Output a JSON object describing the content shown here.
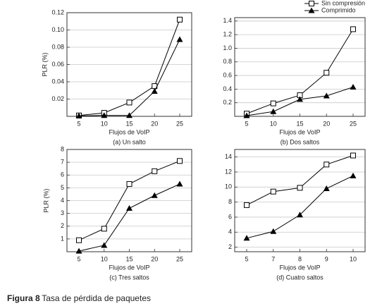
{
  "chart_data": [
    {
      "type": "line",
      "title": "(a) Un salto",
      "x_label": "Flujos de VoIP",
      "y_label": "PLR (%)",
      "categories": [
        5,
        10,
        15,
        20,
        25
      ],
      "ylim": [
        0,
        0.12
      ],
      "yticks": [
        0.02,
        0.04,
        0.06,
        0.08,
        {
          "value": 0.1,
          "label": "0.10"
        },
        0.12
      ],
      "grid": true,
      "series": [
        {
          "color": "#000000",
          "marker": "square-open",
          "values": [
            0.001,
            0.004,
            0.016,
            0.035,
            0.112
          ]
        },
        {
          "color": "#000000",
          "marker": "triangle-filled",
          "values": [
            0.0005,
            0.001,
            0.001,
            0.029,
            0.089
          ]
        }
      ]
    },
    {
      "type": "line",
      "title": "(b) Dos saltos",
      "x_label": "Flujos de VoIP",
      "categories": [
        5,
        10,
        15,
        20,
        25
      ],
      "ylim": [
        0,
        1.45
      ],
      "yticks": [
        0.2,
        0.4,
        0.6,
        0.8,
        {
          "value": 1.0,
          "label": "1.0"
        },
        1.2,
        1.4
      ],
      "grid": true,
      "series": [
        {
          "name": "Sin compresión",
          "color": "#000000",
          "marker": "square-open",
          "values": [
            0.04,
            0.19,
            0.31,
            0.64,
            1.28
          ]
        },
        {
          "name": "Comprimido",
          "color": "#000000",
          "marker": "triangle-filled",
          "values": [
            0.01,
            0.07,
            0.25,
            0.3,
            0.43
          ]
        }
      ]
    },
    {
      "type": "line",
      "title": "(c) Tres saltos",
      "x_label": "Flujos de VoIP",
      "y_label": "PLR (%)",
      "categories": [
        5,
        10,
        15,
        20,
        25
      ],
      "ylim": [
        0,
        8
      ],
      "yticks": [
        1,
        2,
        3,
        4,
        5,
        6,
        7,
        8
      ],
      "grid": true,
      "series": [
        {
          "color": "#000000",
          "marker": "square-open",
          "values": [
            0.9,
            1.8,
            5.3,
            6.3,
            7.1
          ]
        },
        {
          "color": "#000000",
          "marker": "triangle-filled",
          "values": [
            0.05,
            0.5,
            3.4,
            4.4,
            5.3
          ]
        }
      ]
    },
    {
      "type": "line",
      "title": "(d) Cuatro saltos",
      "x_label": "Flujos de VoIP",
      "categories": [
        5,
        7,
        8,
        9,
        10
      ],
      "ylim": [
        1.4,
        15
      ],
      "yticks": [
        2,
        4,
        6,
        8,
        10,
        12,
        14
      ],
      "grid": true,
      "series": [
        {
          "color": "#000000",
          "marker": "square-open",
          "values": [
            7.6,
            9.4,
            9.9,
            13.0,
            14.2
          ]
        },
        {
          "color": "#000000",
          "marker": "triangle-filled",
          "values": [
            3.2,
            4.1,
            6.3,
            9.8,
            11.5
          ]
        }
      ]
    }
  ],
  "figure_caption": {
    "label": "Figura 8",
    "text": "Tasa de pérdida de paquetes"
  }
}
